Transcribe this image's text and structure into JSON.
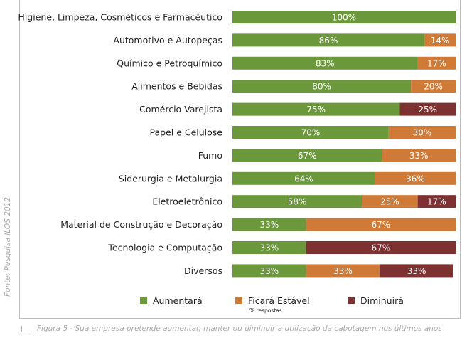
{
  "chart_data": {
    "type": "bar",
    "stacked": true,
    "orientation": "horizontal",
    "categories": [
      "Higiene, Limpeza, Cosméticos e Farmacêutico",
      "Automotivo e Autopeças",
      "Químico e Petroquímico",
      "Alimentos e Bebidas",
      "Comércio Varejista",
      "Papel e Celulose",
      "Fumo",
      "Siderurgia e Metalurgia",
      "Eletroeletrônico",
      "Material de Construção e Decoração",
      "Tecnologia e Computação",
      "Diversos"
    ],
    "series": [
      {
        "name": "Aumentará",
        "color": "#6a983a",
        "values": [
          100,
          86,
          83,
          80,
          75,
          70,
          67,
          64,
          58,
          33,
          33,
          33
        ]
      },
      {
        "name": "Ficará Estável",
        "color": "#d07a38",
        "values": [
          0,
          14,
          17,
          20,
          0,
          30,
          33,
          36,
          25,
          67,
          0,
          33
        ]
      },
      {
        "name": "Diminuirá",
        "color": "#7d3131",
        "values": [
          0,
          0,
          0,
          0,
          25,
          0,
          0,
          0,
          17,
          0,
          67,
          33
        ]
      }
    ],
    "xlim": [
      0,
      100
    ],
    "value_suffix": "%",
    "legend_placement": "bottom",
    "legend_note": "% respostas",
    "grid": false
  },
  "source": "Fonte: Pesquisa ILOS 2012",
  "caption": "Figura 5 - Sua empresa pretende aumentar, manter ou diminuir a utilização da cabotagem nos últimos anos"
}
